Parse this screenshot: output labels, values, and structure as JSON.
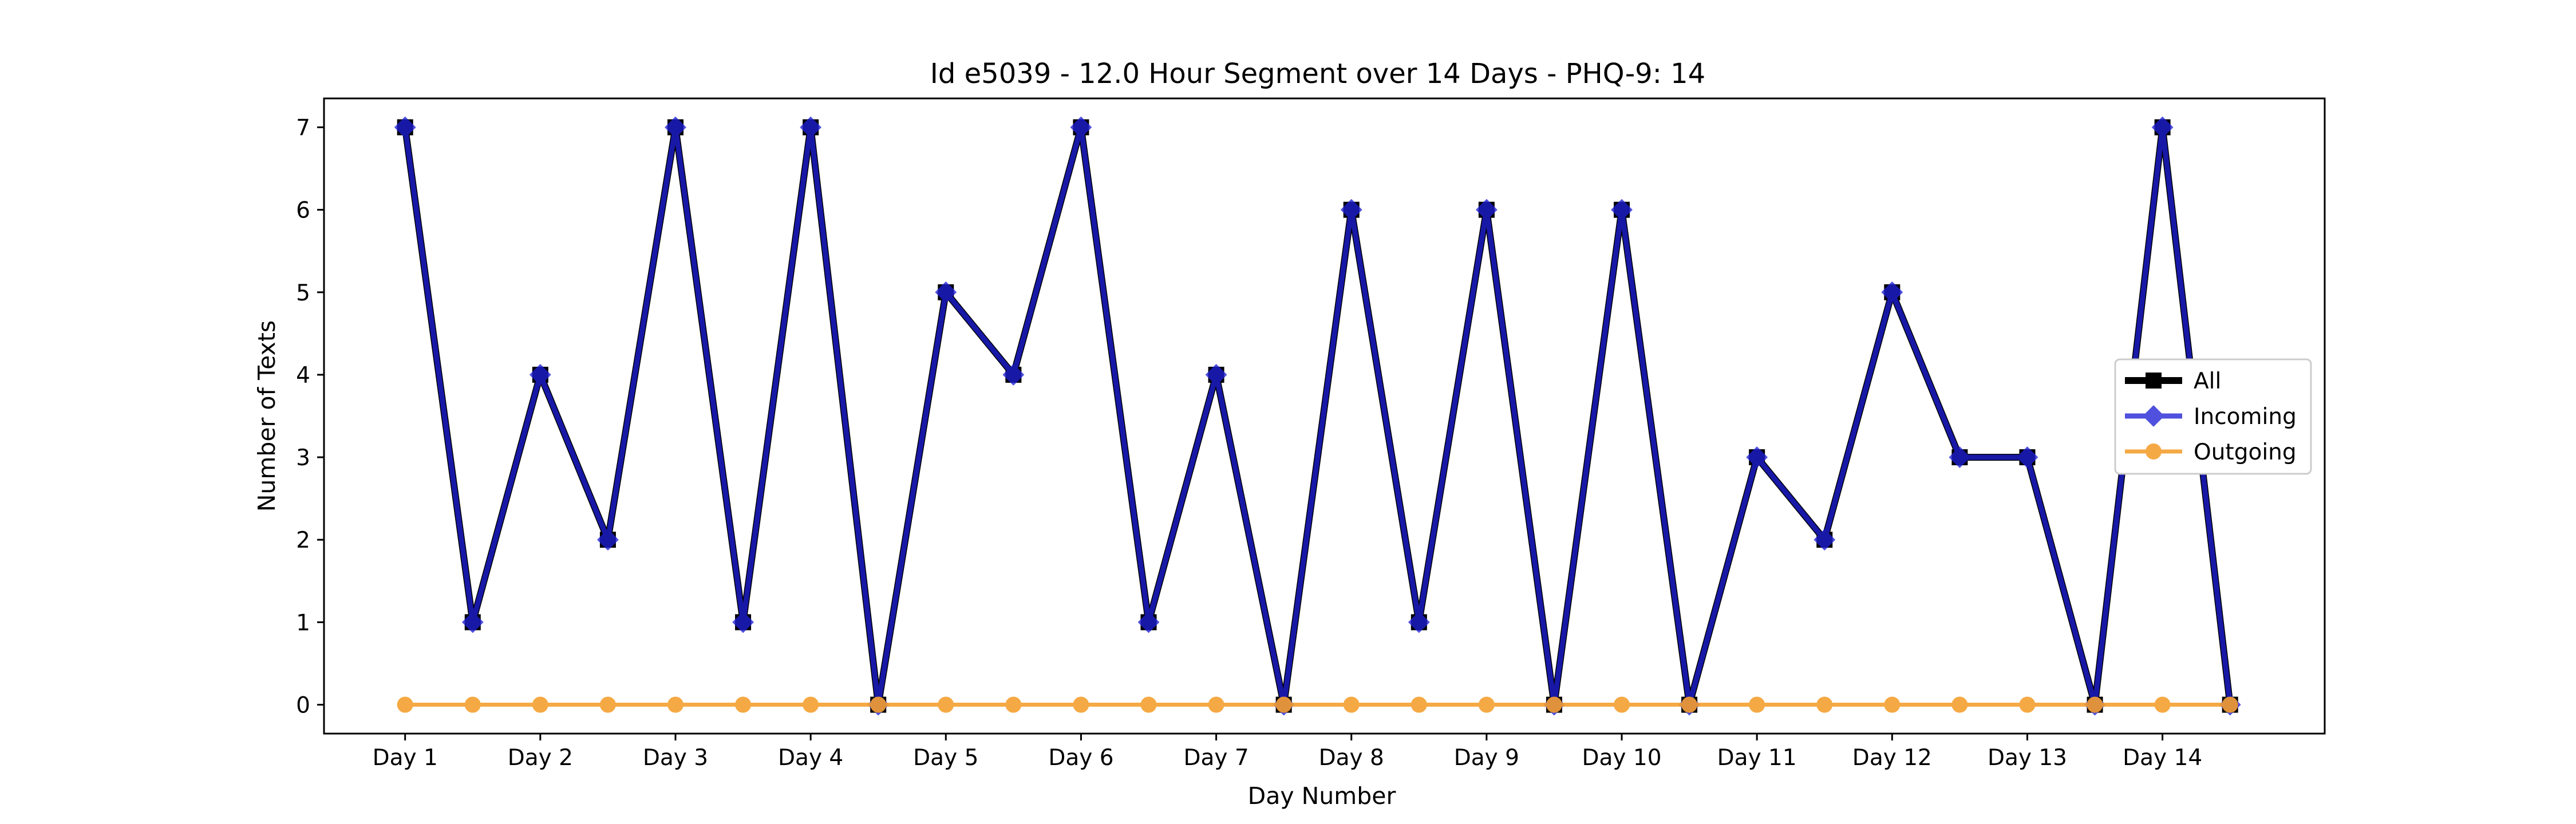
{
  "chart_data": {
    "type": "line",
    "title": "Id e5039 - 12.0 Hour Segment over 14 Days - PHQ-9: 14",
    "xlabel": "Day Number",
    "ylabel": "Number of Texts",
    "x_tick_labels": [
      "Day 1",
      "Day 2",
      "Day 3",
      "Day 4",
      "Day 5",
      "Day 6",
      "Day 7",
      "Day 8",
      "Day 9",
      "Day 10",
      "Day 11",
      "Day 12",
      "Day 13",
      "Day 14"
    ],
    "y_ticks": [
      0,
      1,
      2,
      3,
      4,
      5,
      6,
      7
    ],
    "ylim": [
      -0.35,
      7.35
    ],
    "x": [
      1,
      1.5,
      2,
      2.5,
      3,
      3.5,
      4,
      4.5,
      5,
      5.5,
      6,
      6.5,
      7,
      7.5,
      8,
      8.5,
      9,
      9.5,
      10,
      10.5,
      11,
      11.5,
      12,
      12.5,
      13,
      13.5,
      14,
      14.5
    ],
    "xlim": [
      0.4,
      15.2
    ],
    "legend_position": "center-right",
    "grid": false,
    "series": [
      {
        "name": "All",
        "color": "#000000",
        "marker": "square",
        "values": [
          7,
          1,
          4,
          2,
          7,
          1,
          7,
          0,
          5,
          4,
          7,
          1,
          4,
          0,
          6,
          1,
          6,
          0,
          6,
          0,
          3,
          2,
          5,
          3,
          3,
          0,
          7,
          0
        ]
      },
      {
        "name": "Incoming",
        "color": "#1f1fd6",
        "marker": "diamond",
        "values": [
          7,
          1,
          4,
          2,
          7,
          1,
          7,
          0,
          5,
          4,
          7,
          1,
          4,
          0,
          6,
          1,
          6,
          0,
          6,
          0,
          3,
          2,
          5,
          3,
          3,
          0,
          7,
          0
        ]
      },
      {
        "name": "Outgoing",
        "color": "#f5a030",
        "marker": "circle",
        "values": [
          0,
          0,
          0,
          0,
          0,
          0,
          0,
          0,
          0,
          0,
          0,
          0,
          0,
          0,
          0,
          0,
          0,
          0,
          0,
          0,
          0,
          0,
          0,
          0,
          0,
          0,
          0,
          0
        ]
      }
    ]
  }
}
